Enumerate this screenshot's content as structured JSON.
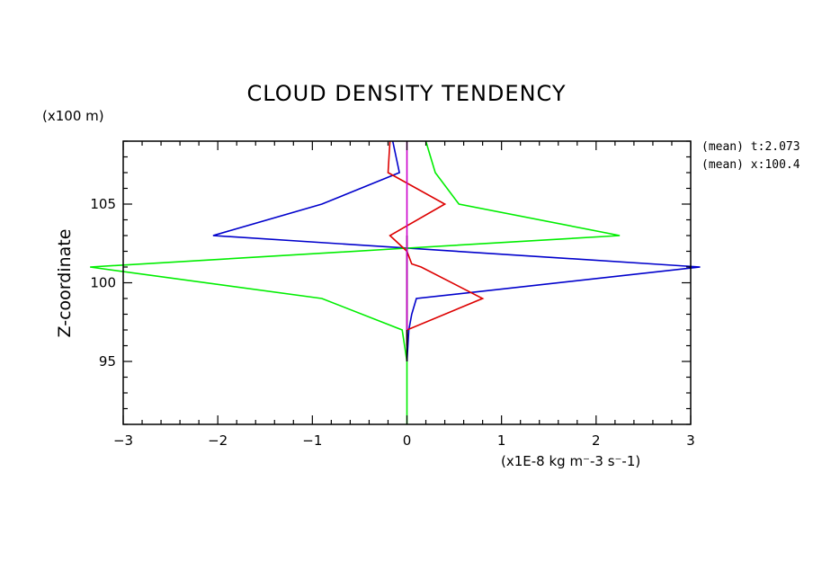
{
  "chart_data": {
    "type": "line",
    "title": "CLOUD DENSITY TENDENCY",
    "xlabel": "(x1E-8 kg m⁻-3 s⁻-1)",
    "ylabel": "Z-coordinate",
    "yunit": "(x100 m)",
    "xlim": [
      -3,
      3
    ],
    "ylim": [
      91,
      109
    ],
    "xticks": [
      -3,
      -2,
      -1,
      0,
      1,
      2,
      3
    ],
    "yticks": [
      95,
      100,
      105
    ],
    "grid": false,
    "annotations": [
      "(mean) t:2.073",
      "(mean) x:100.4"
    ],
    "series": [
      {
        "color": "#0000cc",
        "points": [
          [
            -0.15,
            109
          ],
          [
            -0.08,
            107
          ],
          [
            -0.9,
            105
          ],
          [
            -2.05,
            103
          ],
          [
            3.1,
            101
          ],
          [
            0.1,
            99
          ],
          [
            0.05,
            98
          ],
          [
            0.02,
            97
          ],
          [
            0,
            95
          ]
        ]
      },
      {
        "color": "#00ee00",
        "points": [
          [
            0.2,
            109
          ],
          [
            0.3,
            107
          ],
          [
            0.55,
            105
          ],
          [
            2.25,
            103
          ],
          [
            0,
            102.2
          ],
          [
            -3.35,
            101
          ],
          [
            -0.9,
            99
          ],
          [
            -0.05,
            97
          ],
          [
            0,
            95
          ],
          [
            0,
            91
          ]
        ]
      },
      {
        "color": "#dd0000",
        "points": [
          [
            -0.18,
            109
          ],
          [
            -0.2,
            107
          ],
          [
            0.4,
            105
          ],
          [
            -0.18,
            103
          ],
          [
            0,
            102
          ],
          [
            0.05,
            101.2
          ],
          [
            0.15,
            101
          ],
          [
            0.8,
            99
          ],
          [
            0,
            97
          ],
          [
            0,
            96
          ]
        ]
      },
      {
        "color": "#000000",
        "points": [
          [
            0,
            103
          ],
          [
            0,
            101
          ],
          [
            0,
            99
          ],
          [
            0,
            97
          ],
          [
            0,
            95
          ]
        ]
      },
      {
        "color": "#cc00cc",
        "points": [
          [
            0,
            109
          ],
          [
            0,
            107
          ],
          [
            0,
            105
          ],
          [
            0,
            103
          ],
          [
            0,
            101
          ],
          [
            0,
            99
          ],
          [
            0,
            97
          ]
        ]
      }
    ]
  }
}
